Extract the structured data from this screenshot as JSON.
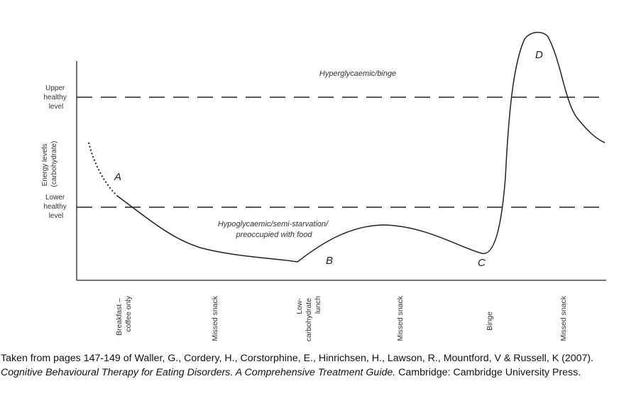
{
  "chart_data": {
    "type": "line",
    "ylabel_lines": [
      "Energy levels",
      "(carbohydrate)"
    ],
    "thresholds": [
      {
        "label_lines": [
          "Upper",
          "healthy",
          "level"
        ]
      },
      {
        "label_lines": [
          "Lower",
          "healthy",
          "level"
        ]
      }
    ],
    "x_ticks": [
      {
        "lines": [
          "Breakfast –",
          "coffee only"
        ]
      },
      {
        "lines": [
          "Missed snack"
        ]
      },
      {
        "lines": [
          "Low-",
          "carbohydrate",
          "lunch"
        ]
      },
      {
        "lines": [
          "Missed snack"
        ]
      },
      {
        "lines": [
          "Binge"
        ]
      },
      {
        "lines": [
          "Missed snack"
        ]
      }
    ],
    "zone_labels": {
      "upper": [
        "Hyperglycaemic/binge"
      ],
      "lower": [
        "Hypoglycaemic/semi-starvation/",
        "preoccupied with food"
      ]
    },
    "points": {
      "A": "A",
      "B": "B",
      "C": "C",
      "D": "D"
    },
    "grid": false,
    "legend": "none"
  },
  "caption": {
    "pre": "Taken from pages 147-149 of Waller, G., Cordery, H., Corstorphine, E., Hinrichsen, H., Lawson, R., Mountford, V & Russell, K (2007). ",
    "title": "Cognitive Behavioural Therapy for Eating Disorders. A Comprehensive Treatment Guide.",
    "post": " Cambridge: Cambridge University Press."
  }
}
